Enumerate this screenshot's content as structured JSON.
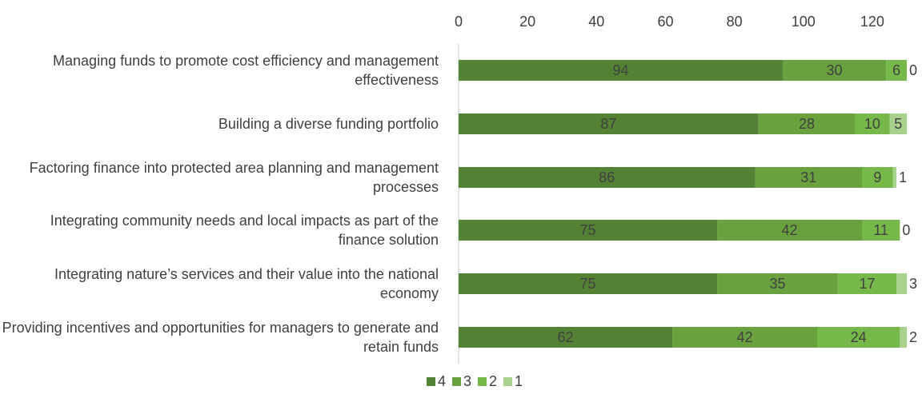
{
  "chart_data": {
    "type": "stacked-bar-horizontal",
    "categories": [
      "Managing funds to promote cost efficiency and management effectiveness",
      "Building a diverse funding portfolio",
      "Factoring finance into protected area planning and management processes",
      "Integrating community needs and local impacts as part of the finance solution",
      "Integrating nature’s services and their value into the national economy",
      "Providing incentives and opportunities for managers to generate and retain funds"
    ],
    "series": [
      {
        "name": "4",
        "color": "#548235",
        "values": [
          94,
          87,
          86,
          75,
          75,
          62
        ]
      },
      {
        "name": "3",
        "color": "#6aa13f",
        "values": [
          30,
          28,
          31,
          42,
          35,
          42
        ]
      },
      {
        "name": "2",
        "color": "#76b84a",
        "values": [
          6,
          10,
          9,
          11,
          17,
          24
        ]
      },
      {
        "name": "1",
        "color": "#a9d18e",
        "values": [
          0,
          5,
          1,
          0,
          3,
          2
        ]
      }
    ],
    "xlim": [
      0,
      130
    ],
    "xticks": [
      0,
      20,
      40,
      60,
      80,
      100,
      120
    ],
    "legend": "bottom",
    "grid": false
  }
}
